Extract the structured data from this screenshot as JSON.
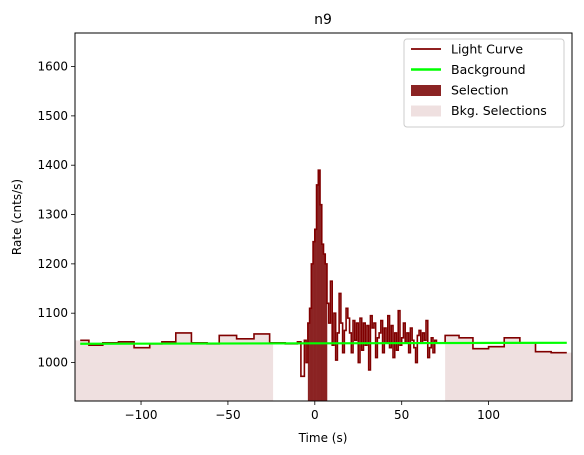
{
  "chart_data": {
    "type": "line",
    "title": "n9",
    "xlabel": "Time (s)",
    "ylabel": "Rate (cnts/s)",
    "xlim": [
      -138,
      148
    ],
    "ylim": [
      922,
      1668
    ],
    "xticks": [
      -100,
      -50,
      0,
      50,
      100
    ],
    "xtick_labels": [
      "−100",
      "−50",
      "0",
      "50",
      "100"
    ],
    "yticks": [
      1000,
      1100,
      1200,
      1300,
      1400,
      1500,
      1600
    ],
    "ytick_labels": [
      "1000",
      "1100",
      "1200",
      "1300",
      "1400",
      "1500",
      "1600"
    ],
    "grid": false,
    "legend_position": "top-right",
    "legend": [
      {
        "label": "Light Curve",
        "kind": "line",
        "color": "#800000"
      },
      {
        "label": "Background",
        "kind": "line",
        "color": "#00ff00"
      },
      {
        "label": "Selection",
        "kind": "patch",
        "color": "#8b2323"
      },
      {
        "label": "Bkg. Selections",
        "kind": "patch",
        "color": "#efe0e0"
      }
    ],
    "colors": {
      "light_curve": "#800000",
      "background": "#00ff00",
      "selection": "#8b2323",
      "bkg_selection": "#efe0e0"
    },
    "bkg_selections": [
      [
        -138,
        -24
      ],
      [
        75,
        148
      ]
    ],
    "selection_range": [
      -4,
      7
    ],
    "background_level": [
      [
        -135,
        1038
      ],
      [
        145,
        1040
      ]
    ],
    "light_curve": {
      "edges": [
        -135,
        -130,
        -122,
        -113,
        -104,
        -95,
        -88,
        -80,
        -71,
        -62,
        -55,
        -45,
        -35,
        -26,
        -17,
        -10,
        -8,
        -6,
        -5,
        -4,
        -3,
        -2,
        -1,
        0,
        1,
        2,
        3,
        4,
        5,
        6,
        7,
        8,
        9,
        10,
        11,
        12,
        13,
        14,
        15,
        16,
        17,
        18,
        19,
        20,
        21,
        22,
        23,
        24,
        25,
        26,
        27,
        28,
        29,
        30,
        31,
        32,
        33,
        34,
        35,
        36,
        37,
        38,
        39,
        40,
        41,
        42,
        43,
        44,
        45,
        46,
        47,
        48,
        49,
        50,
        51,
        52,
        53,
        54,
        55,
        56,
        57,
        58,
        59,
        60,
        61,
        62,
        63,
        64,
        65,
        66,
        67,
        68,
        69,
        70,
        75,
        83,
        91,
        100,
        109,
        118,
        127,
        136,
        145
      ],
      "values": [
        1045,
        1035,
        1040,
        1042,
        1030,
        1038,
        1042,
        1060,
        1040,
        1038,
        1055,
        1048,
        1058,
        1040,
        1038,
        1042,
        972,
        1045,
        1000,
        1080,
        1110,
        1200,
        1245,
        1270,
        1360,
        1390,
        1320,
        1240,
        1220,
        1200,
        1120,
        1080,
        1165,
        1035,
        1100,
        1005,
        1060,
        1140,
        1080,
        1020,
        1065,
        1110,
        1090,
        1060,
        1020,
        1085,
        1045,
        1080,
        1000,
        1090,
        1025,
        1080,
        1035,
        1075,
        985,
        1095,
        1070,
        1080,
        1010,
        1050,
        1060,
        1085,
        1020,
        1070,
        1040,
        1095,
        1030,
        1075,
        1010,
        1060,
        1025,
        1105,
        1035,
        1050,
        1080,
        1040,
        1060,
        1020,
        1070,
        1045,
        1030,
        1000,
        1055,
        1065,
        1040,
        1060,
        1045,
        1085,
        1010,
        1030,
        1050,
        1020,
        1045,
        1040,
        1055,
        1050,
        1028,
        1032,
        1050,
        1040,
        1022,
        1020
      ]
    }
  }
}
